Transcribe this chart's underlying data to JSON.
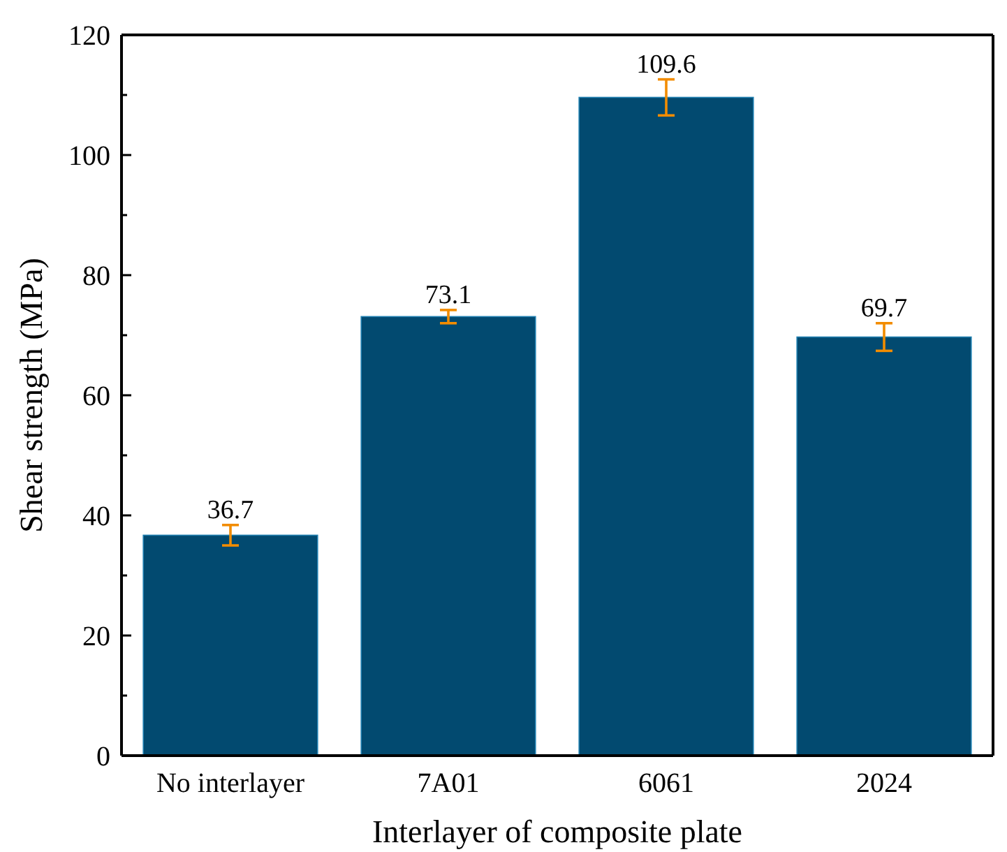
{
  "chart_data": {
    "type": "bar",
    "xlabel": "Interlayer of composite plate",
    "ylabel": "Shear strength (MPa)",
    "categories": [
      "No interlayer",
      "7A01",
      "6061",
      "2024"
    ],
    "values": [
      36.7,
      73.1,
      109.6,
      69.7
    ],
    "errors": [
      1.7,
      1.1,
      3,
      2.3
    ],
    "color": "#024a70",
    "data_labels": true,
    "ylim": [
      0,
      120
    ],
    "yticks": [
      0,
      {
        "value": 10,
        "label": null
      },
      20,
      {
        "value": 30,
        "label": null
      },
      40,
      {
        "value": 50,
        "label": null
      },
      60,
      {
        "value": 70,
        "label": null
      },
      80,
      {
        "value": 90,
        "label": null
      },
      100,
      {
        "value": 110,
        "label": null
      },
      120
    ],
    "grid": false
  }
}
